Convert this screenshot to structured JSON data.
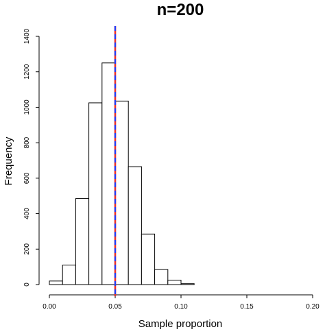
{
  "chart_data": {
    "type": "bar",
    "title": "n=200",
    "xlabel": "Sample proportion",
    "ylabel": "Frequency",
    "xlim": [
      0,
      0.2
    ],
    "ylim": [
      0,
      1400
    ],
    "x_ticks": [
      "0.00",
      "0.05",
      "0.10",
      "0.15",
      "0.20"
    ],
    "x_tick_values": [
      0,
      0.05,
      0.1,
      0.15,
      0.2
    ],
    "y_ticks": [
      "0",
      "200",
      "400",
      "600",
      "800",
      "1000",
      "1200",
      "1400"
    ],
    "y_tick_values": [
      0,
      200,
      400,
      600,
      800,
      1000,
      1200,
      1400
    ],
    "bins": [
      {
        "start": 0.0,
        "end": 0.01,
        "count": 20
      },
      {
        "start": 0.01,
        "end": 0.02,
        "count": 110
      },
      {
        "start": 0.02,
        "end": 0.03,
        "count": 485
      },
      {
        "start": 0.03,
        "end": 0.04,
        "count": 1025
      },
      {
        "start": 0.04,
        "end": 0.05,
        "count": 1250
      },
      {
        "start": 0.05,
        "end": 0.06,
        "count": 1035
      },
      {
        "start": 0.06,
        "end": 0.07,
        "count": 665
      },
      {
        "start": 0.07,
        "end": 0.08,
        "count": 285
      },
      {
        "start": 0.08,
        "end": 0.09,
        "count": 85
      },
      {
        "start": 0.09,
        "end": 0.1,
        "count": 25
      },
      {
        "start": 0.1,
        "end": 0.11,
        "count": 5
      }
    ],
    "reference_lines": [
      {
        "x": 0.05,
        "color": "#e8322c",
        "style": "solid"
      },
      {
        "x": 0.05,
        "color": "#1e40ff",
        "style": "dashed"
      }
    ]
  }
}
